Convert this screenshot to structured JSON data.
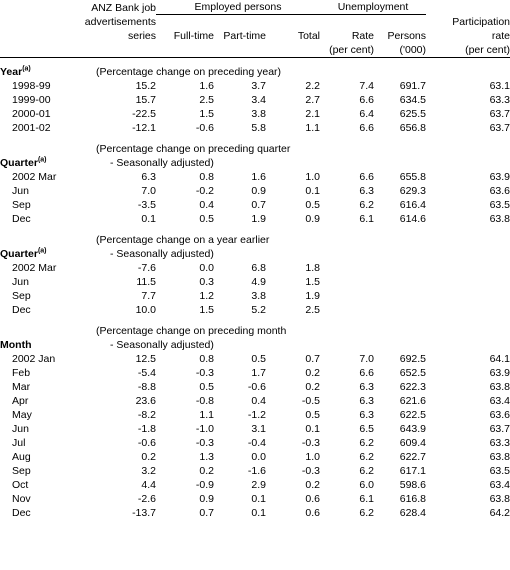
{
  "header": {
    "anz": [
      "ANZ Bank job",
      "advertisements",
      "series"
    ],
    "employed_group": "Employed persons",
    "unemployment_group": "Unemployment",
    "participation": [
      "Participation",
      "rate",
      "(per cent)"
    ],
    "full_time": "Full-time",
    "part_time": "Part-time",
    "total": "Total",
    "rate": [
      "Rate",
      "(per cent)"
    ],
    "persons": [
      "Persons",
      "('000)"
    ]
  },
  "sections": [
    {
      "title": "Year",
      "sup": "(a)",
      "note1": "(Percentage change on preceding year)",
      "note2": "",
      "rows": [
        [
          "1998-99",
          "15.2",
          "1.6",
          "3.7",
          "2.2",
          "7.4",
          "691.7",
          "63.1"
        ],
        [
          "1999-00",
          "15.7",
          "2.5",
          "3.4",
          "2.7",
          "6.6",
          "634.5",
          "63.3"
        ],
        [
          "2000-01",
          "-22.5",
          "1.5",
          "3.8",
          "2.1",
          "6.4",
          "625.5",
          "63.7"
        ],
        [
          "2001-02",
          "-12.1",
          "-0.6",
          "5.8",
          "1.1",
          "6.6",
          "656.8",
          "63.7"
        ]
      ]
    },
    {
      "title": "Quarter",
      "sup": "(a)",
      "note1": "(Percentage change on preceding quarter",
      "note2": "- Seasonally adjusted)",
      "rows": [
        [
          "2002 Mar",
          "6.3",
          "0.8",
          "1.6",
          "1.0",
          "6.6",
          "655.8",
          "63.9"
        ],
        [
          "Jun",
          "7.0",
          "-0.2",
          "0.9",
          "0.1",
          "6.3",
          "629.3",
          "63.6"
        ],
        [
          "Sep",
          "-3.5",
          "0.4",
          "0.7",
          "0.5",
          "6.2",
          "616.4",
          "63.5"
        ],
        [
          "Dec",
          "0.1",
          "0.5",
          "1.9",
          "0.9",
          "6.1",
          "614.6",
          "63.8"
        ]
      ]
    },
    {
      "title": "Quarter",
      "sup": "(a)",
      "note1": "(Percentage change on a year earlier",
      "note2": "- Seasonally adjusted)",
      "rows": [
        [
          "2002 Mar",
          "-7.6",
          "0.0",
          "6.8",
          "1.8",
          "",
          "",
          ""
        ],
        [
          "Jun",
          "11.5",
          "0.3",
          "4.9",
          "1.5",
          "",
          "",
          ""
        ],
        [
          "Sep",
          "7.7",
          "1.2",
          "3.8",
          "1.9",
          "",
          "",
          ""
        ],
        [
          "Dec",
          "10.0",
          "1.5",
          "5.2",
          "2.5",
          "",
          "",
          ""
        ]
      ]
    },
    {
      "title": "Month",
      "sup": "",
      "note1": "(Percentage change on preceding month",
      "note2": "- Seasonally adjusted)",
      "rows": [
        [
          "2002 Jan",
          "12.5",
          "0.8",
          "0.5",
          "0.7",
          "7.0",
          "692.5",
          "64.1"
        ],
        [
          "Feb",
          "-5.4",
          "-0.3",
          "1.7",
          "0.2",
          "6.6",
          "652.5",
          "63.9"
        ],
        [
          "Mar",
          "-8.8",
          "0.5",
          "-0.6",
          "0.2",
          "6.3",
          "622.3",
          "63.8"
        ],
        [
          "Apr",
          "23.6",
          "-0.8",
          "0.4",
          "-0.5",
          "6.3",
          "621.6",
          "63.4"
        ],
        [
          "May",
          "-8.2",
          "1.1",
          "-1.2",
          "0.5",
          "6.3",
          "622.5",
          "63.6"
        ],
        [
          "Jun",
          "-1.8",
          "-1.0",
          "3.1",
          "0.1",
          "6.5",
          "643.9",
          "63.7"
        ],
        [
          "Jul",
          "-0.6",
          "-0.3",
          "-0.4",
          "-0.3",
          "6.2",
          "609.4",
          "63.3"
        ],
        [
          "Aug",
          "0.2",
          "1.3",
          "0.0",
          "1.0",
          "6.2",
          "622.7",
          "63.8"
        ],
        [
          "Sep",
          "3.2",
          "0.2",
          "-1.6",
          "-0.3",
          "6.2",
          "617.1",
          "63.5"
        ],
        [
          "Oct",
          "4.4",
          "-0.9",
          "2.9",
          "0.2",
          "6.0",
          "598.6",
          "63.4"
        ],
        [
          "Nov",
          "-2.6",
          "0.9",
          "0.1",
          "0.6",
          "6.1",
          "616.8",
          "63.8"
        ],
        [
          "Dec",
          "-13.7",
          "0.7",
          "0.1",
          "0.6",
          "6.2",
          "628.4",
          "64.2"
        ]
      ]
    }
  ]
}
